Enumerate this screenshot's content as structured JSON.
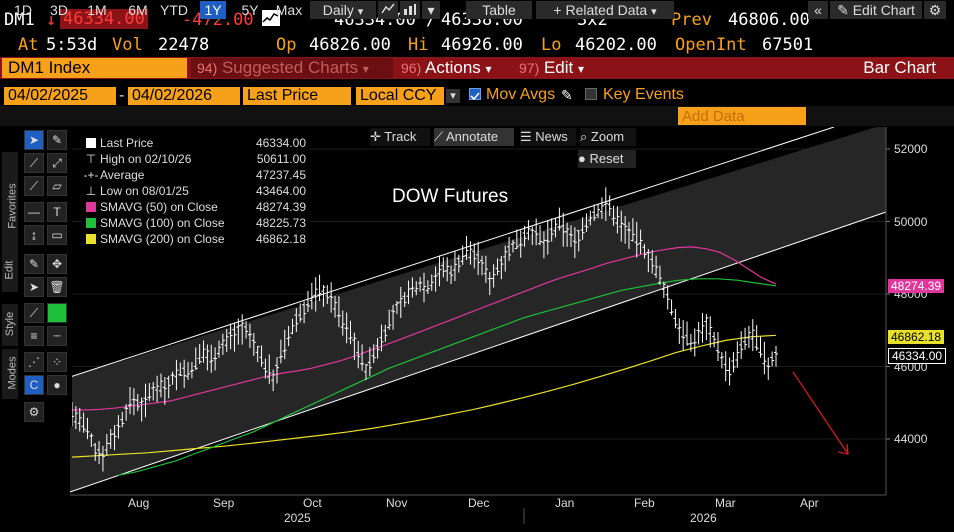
{
  "header": {
    "ticker": "DM1",
    "arrow": "↓",
    "last": "46334.00",
    "change": "-472.00",
    "bidask_bid": "46334.00",
    "bidask_sep": "/",
    "bidask_ask": "46338.00",
    "size": "3x2",
    "prev_label": "Prev",
    "prev_value": "46806.00",
    "at_label": "At",
    "at_value": "5:53d",
    "vol_label": "Vol",
    "vol_value": "22478",
    "op_label": "Op",
    "op_value": "46826.00",
    "hi_label": "Hi",
    "hi_value": "46926.00",
    "lo_label": "Lo",
    "lo_value": "46202.00",
    "oi_label": "OpenInt",
    "oi_value": "67501"
  },
  "menubar": {
    "security": "DM1 Index",
    "suggested_num": "94)",
    "suggested": "Suggested Charts",
    "actions_num": "96)",
    "actions": "Actions",
    "edit_num": "97)",
    "edit": "Edit",
    "chart_type": "Bar Chart"
  },
  "daterow": {
    "start_date": "04/02/2025",
    "dash": "-",
    "end_date": "04/02/2026",
    "price_field": "Last Price",
    "currency": "Local CCY",
    "mov_avgs": "Mov Avgs",
    "key_events": "Key Events"
  },
  "periods": [
    "1D",
    "3D",
    "1M",
    "6M",
    "YTD",
    "1Y",
    "5Y",
    "Max"
  ],
  "selected_period": "1Y",
  "toolbar": {
    "frequency": "Daily",
    "table": "Table",
    "related": "Related Data",
    "add_data_placeholder": "Add Data",
    "edit_chart": "Edit Chart",
    "track": "Track",
    "annotate": "Annotate",
    "news": "News",
    "zoom": "Zoom",
    "reset": "Reset"
  },
  "side_tabs": {
    "favorites": "Favorites",
    "edit": "Edit",
    "style": "Style",
    "modes": "Modes"
  },
  "legend": {
    "last_price_label": "Last Price",
    "last_price_value": "46334.00",
    "high_label": "High on 02/10/26",
    "high_value": "50611.00",
    "average_label": "Average",
    "average_value": "47237.45",
    "low_label": "Low on 08/01/25",
    "low_value": "43464.00",
    "sma50_label": "SMAVG (50)  on Close",
    "sma50_value": "48274.39",
    "sma100_label": "SMAVG (100)  on Close",
    "sma100_value": "48225.73",
    "sma200_label": "SMAVG (200)  on Close",
    "sma200_value": "46862.18"
  },
  "chart_data": {
    "type": "bar",
    "title": "DOW Futures",
    "ylim": [
      43000,
      52500
    ],
    "yticks": [
      "52000",
      "50000",
      "48000",
      "46000",
      "44000"
    ],
    "xticks": [
      "Aug",
      "Sep",
      "Oct",
      "Nov",
      "Dec",
      "Jan",
      "Feb",
      "Mar",
      "Apr"
    ],
    "years": [
      "2025",
      "2026"
    ],
    "price_tags": [
      "48274.39",
      "46862.18",
      "46334.00"
    ],
    "colors": {
      "sma50": "#e0379b",
      "sma100": "#1fbf3a",
      "sma200": "#e8e02a",
      "price": "#ffffff",
      "channel": "#ffffff",
      "arrow": "#d11a1a"
    },
    "close_series": [
      44700,
      44500,
      44200,
      43700,
      43600,
      44000,
      44300,
      44800,
      45100,
      44900,
      45200,
      45500,
      45400,
      45700,
      45900,
      45800,
      46100,
      46400,
      46200,
      46500,
      46700,
      46900,
      47100,
      46800,
      46400,
      46000,
      45700,
      46300,
      46800,
      47300,
      47600,
      47900,
      48100,
      48000,
      47700,
      47200,
      46900,
      46400,
      45900,
      46300,
      46800,
      47200,
      47600,
      47900,
      48100,
      48300,
      48200,
      48500,
      48700,
      48600,
      48900,
      49200,
      49100,
      48800,
      48400,
      48700,
      49100,
      49300,
      49500,
      49800,
      49600,
      49400,
      49700,
      49900,
      49700,
      49400,
      49800,
      50100,
      50300,
      50500,
      50200,
      49900,
      49700,
      49500,
      49200,
      48900,
      48400,
      47900,
      47300,
      46900,
      46600,
      46900,
      47200,
      46800,
      46200,
      45800,
      46300,
      46700,
      46900,
      46400,
      46000,
      46334
    ],
    "sma50_series": [
      44800,
      44800,
      44820,
      44850,
      44900,
      44950,
      45000,
      45050,
      45150,
      45250,
      45350,
      45450,
      45550,
      45650,
      45750,
      45820,
      45880,
      45950,
      46050,
      46150,
      46280,
      46420,
      46560,
      46700,
      46850,
      47000,
      47150,
      47300,
      47450,
      47600,
      47750,
      47900,
      48050,
      48200,
      48350,
      48480,
      48600,
      48720,
      48850,
      48950,
      49050,
      49150,
      49220,
      49280,
      49300,
      49250,
      49150,
      48950,
      48700,
      48450,
      48274
    ],
    "sma100_series": [
      43000,
      43100,
      43250,
      43400,
      43600,
      43800,
      44000,
      44200,
      44450,
      44700,
      44950,
      45200,
      45450,
      45700,
      45950,
      46150,
      46350,
      46550,
      46750,
      46950,
      47150,
      47350,
      47500,
      47650,
      47800,
      47950,
      48100,
      48200,
      48300,
      48380,
      48420,
      48420,
      48380,
      48300,
      48225
    ],
    "sma200_series": [
      43500,
      43540,
      43580,
      43620,
      43680,
      43740,
      43800,
      43870,
      43950,
      44030,
      44110,
      44200,
      44300,
      44420,
      44540,
      44680,
      44820,
      44980,
      45150,
      45330,
      45520,
      45720,
      45930,
      46150,
      46380,
      46560,
      46720,
      46820,
      46862
    ]
  }
}
